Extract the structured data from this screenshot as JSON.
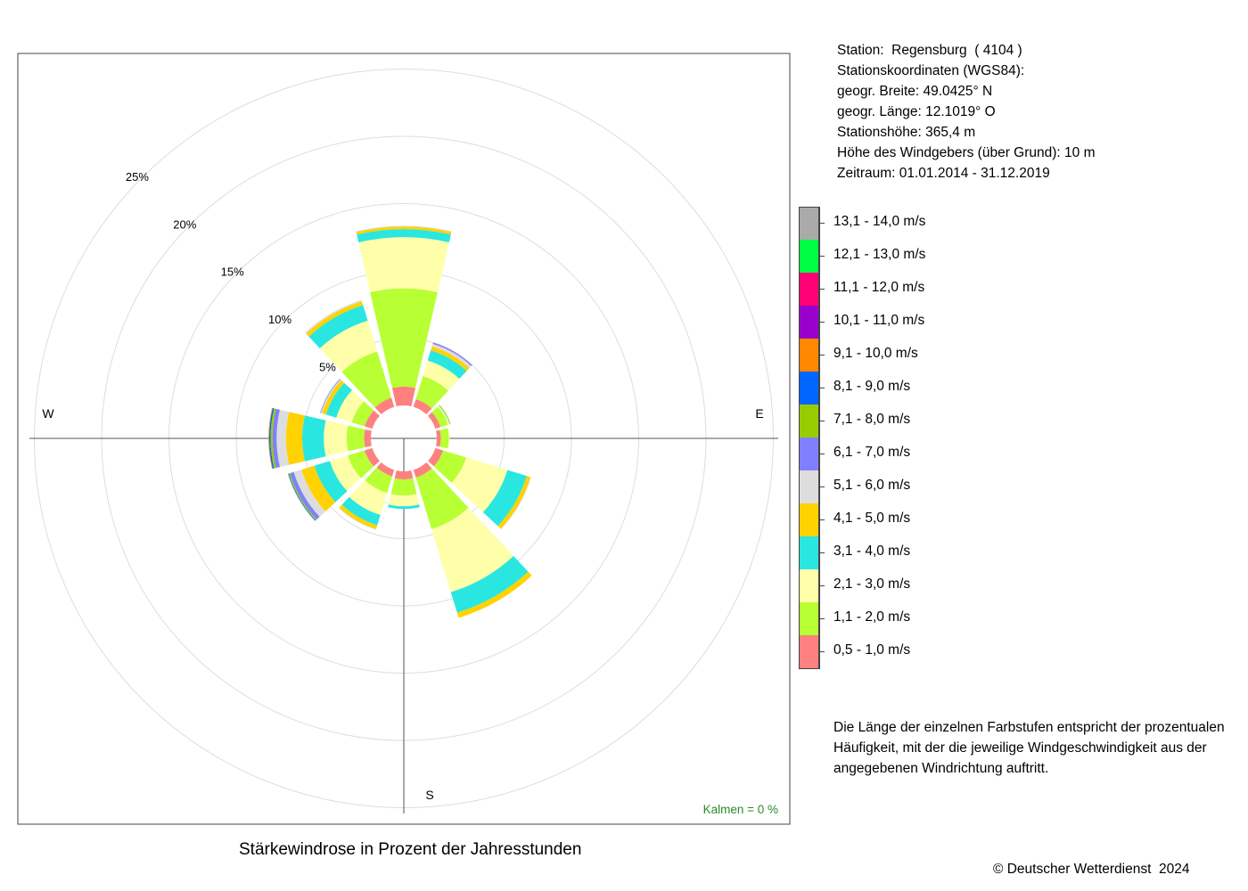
{
  "chart_data": {
    "type": "windrose",
    "title": "Stärkewindrose in Prozent der Jahresstunden",
    "ring_labels": [
      "5%",
      "10%",
      "15%",
      "20%",
      "25%"
    ],
    "ring_values": [
      5,
      10,
      15,
      20,
      25
    ],
    "directions_labels": {
      "W": "W",
      "E": "E",
      "S": "S"
    },
    "calm_label": "Kalmen  =  0 %",
    "speed_classes": [
      {
        "label": "0,5 - 1,0 m/s",
        "color": "#FF8080"
      },
      {
        "label": "1,1 - 2,0 m/s",
        "color": "#B8FF33"
      },
      {
        "label": "2,1 - 3,0 m/s",
        "color": "#FFFFAA"
      },
      {
        "label": "3,1 - 4,0 m/s",
        "color": "#2AE6E0"
      },
      {
        "label": "4,1 - 5,0 m/s",
        "color": "#FFD200"
      },
      {
        "label": "5,1 - 6,0 m/s",
        "color": "#DDDDDD"
      },
      {
        "label": "6,1 - 7,0 m/s",
        "color": "#8080FF"
      },
      {
        "label": "7,1 - 8,0 m/s",
        "color": "#99CC00"
      },
      {
        "label": "8,1 - 9,0 m/s",
        "color": "#0066FF"
      },
      {
        "label": "9,1 - 10,0 m/s",
        "color": "#FF8800"
      },
      {
        "label": "10,1 - 11,0 m/s",
        "color": "#9900CC"
      },
      {
        "label": "11,1 - 12,0 m/s",
        "color": "#FF0077"
      },
      {
        "label": "12,1 - 13,0 m/s",
        "color": "#00FF44"
      },
      {
        "label": "13,1 - 14,0 m/s",
        "color": "#AAAAAA"
      }
    ],
    "directions_deg": [
      0,
      30,
      60,
      90,
      120,
      150,
      180,
      210,
      240,
      270,
      300,
      330
    ],
    "sectors": [
      {
        "dir": 0,
        "values": [
          1.4,
          7.3,
          3.8,
          0.6,
          0.2,
          0.05
        ]
      },
      {
        "dir": 30,
        "values": [
          0.6,
          1.8,
          1.2,
          0.8,
          0.3,
          0.2,
          0.1
        ]
      },
      {
        "dir": 60,
        "values": [
          0.4,
          0.6,
          0.1,
          0.05,
          0.05
        ]
      },
      {
        "dir": 90,
        "values": [
          0.3,
          0.6,
          0.05
        ]
      },
      {
        "dir": 120,
        "values": [
          0.6,
          1.8,
          3.2,
          1.5,
          0.3,
          0.05
        ]
      },
      {
        "dir": 150,
        "values": [
          0.6,
          4.0,
          4.9,
          1.6,
          0.4
        ]
      },
      {
        "dir": 180,
        "values": [
          0.6,
          1.2,
          0.8,
          0.2
        ]
      },
      {
        "dir": 210,
        "values": [
          0.5,
          1.3,
          1.7,
          0.8,
          0.3,
          0.05
        ]
      },
      {
        "dir": 240,
        "values": [
          0.6,
          1.3,
          1.4,
          1.2,
          1.0,
          0.6,
          0.3,
          0.1,
          0.05
        ]
      },
      {
        "dir": 270,
        "values": [
          0.5,
          1.3,
          1.7,
          1.6,
          1.2,
          0.7,
          0.3,
          0.15,
          0.1,
          0.05
        ]
      },
      {
        "dir": 300,
        "values": [
          0.6,
          1.0,
          1.2,
          0.8,
          0.3,
          0.1,
          0.05
        ]
      },
      {
        "dir": 330,
        "values": [
          0.7,
          3.6,
          2.4,
          1.2,
          0.3,
          0.1
        ]
      }
    ]
  },
  "station_info": {
    "station": "Station:  Regensburg  ( 4104 )",
    "coords_heading": "Stationskoordinaten (WGS84):",
    "latitude": "geogr. Breite: 49.0425° N",
    "longitude": "geogr. Länge: 12.1019° O",
    "altitude": "Stationshöhe: 365,4 m",
    "sensor_height": "Höhe des Windgebers (über Grund): 10 m",
    "period": "Zeitraum: 01.01.2014 - 31.12.2019"
  },
  "note": {
    "line1": "Die Länge der einzelnen Farbstufen entspricht der prozentualen",
    "line2": "Häufigkeit, mit der die jeweilige Windgeschwindigkeit aus der",
    "line3": "angegebenen Windrichtung auftritt."
  },
  "copyright": "© Deutscher Wetterdienst  2024"
}
